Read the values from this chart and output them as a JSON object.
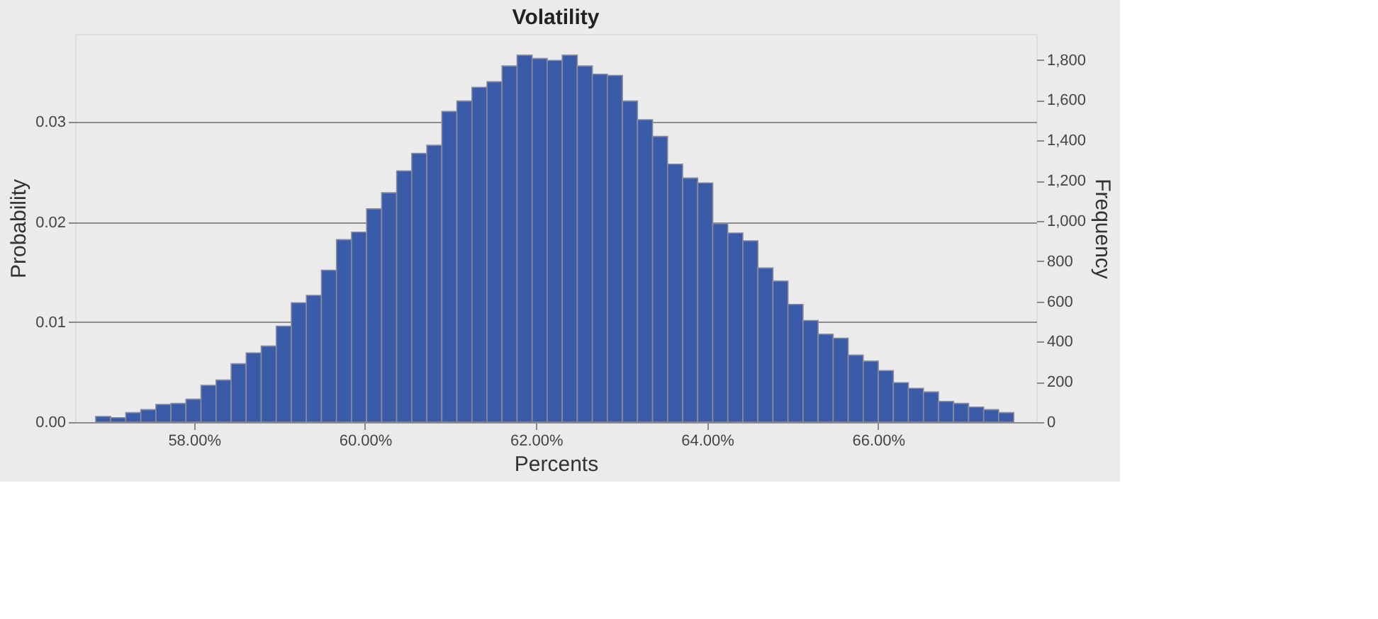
{
  "chart_data": {
    "type": "histogram",
    "title": "Volatility",
    "xlabel": "Percents",
    "ylabel": "Probability",
    "y2label": "Frequency",
    "bins": [
      56.85,
      57.026,
      57.202,
      57.378,
      57.554,
      57.73,
      57.906,
      58.082,
      58.258,
      58.434,
      58.61,
      58.786,
      58.962,
      59.138,
      59.314,
      59.49,
      59.666,
      59.842,
      60.018,
      60.194,
      60.37,
      60.546,
      60.722,
      60.898,
      61.074,
      61.25,
      61.426,
      61.602,
      61.778,
      61.954,
      62.13,
      62.306,
      62.482,
      62.658,
      62.834,
      63.01,
      63.186,
      63.362,
      63.538,
      63.714,
      63.89,
      64.066,
      64.242,
      64.418,
      64.594,
      64.77,
      64.946,
      65.122,
      65.298,
      65.474,
      65.65,
      65.826,
      66.002,
      66.178,
      66.354,
      66.53,
      66.706,
      66.882,
      67.058,
      67.234,
      67.41,
      67.586
    ],
    "series": [
      {
        "color": "#3a5ba8",
        "axis": "y2",
        "values": [
          28,
          22,
          47,
          62,
          88,
          93,
          114,
          183,
          209,
          290,
          344,
          378,
          477,
          593,
          630,
          755,
          907,
          944,
          1060,
          1140,
          1249,
          1336,
          1376,
          1544,
          1596,
          1664,
          1692,
          1770,
          1824,
          1807,
          1798,
          1824,
          1770,
          1729,
          1723,
          1596,
          1503,
          1420,
          1282,
          1213,
          1189,
          987,
          940,
          901,
          766,
          701,
          585,
          505,
          437,
          417,
          333,
          303,
          256,
          196,
          168,
          150,
          103,
          93,
          75,
          62,
          47
        ]
      }
    ],
    "xlim": [
      56.61,
      67.85
    ],
    "xticks": [
      {
        "value": 58,
        "label": "58.00%"
      },
      {
        "value": 60,
        "label": "60.00%"
      },
      {
        "value": 62,
        "label": "62.00%"
      },
      {
        "value": 64,
        "label": "64.00%"
      },
      {
        "value": 66,
        "label": "66.00%"
      }
    ],
    "ylim": [
      0,
      0.0388
    ],
    "yticks": [
      {
        "value": 0,
        "label": "0.00"
      },
      0.01,
      0.02,
      0.03
    ],
    "y2lim": [
      0,
      1929
    ],
    "y2ticks": [
      0,
      200,
      400,
      600,
      800,
      {
        "value": 1000,
        "label": "1,000"
      },
      {
        "value": 1200,
        "label": "1,200"
      },
      {
        "value": 1400,
        "label": "1,400"
      },
      {
        "value": 1600,
        "label": "1,600"
      },
      {
        "value": 1800,
        "label": "1,800"
      }
    ],
    "grid": "y"
  }
}
